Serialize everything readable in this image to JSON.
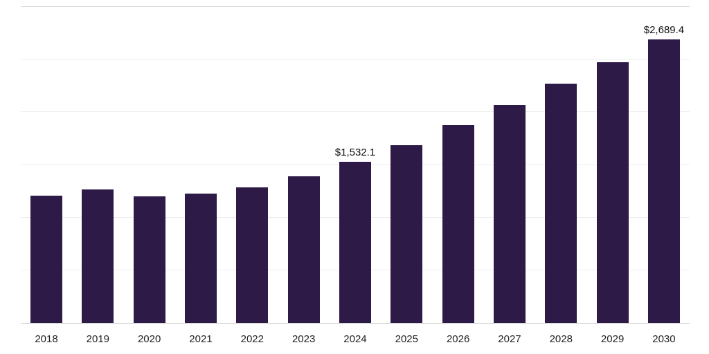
{
  "chart_data": {
    "type": "bar",
    "title": "",
    "xlabel": "",
    "ylabel": "",
    "categories": [
      "2018",
      "2019",
      "2020",
      "2021",
      "2022",
      "2023",
      "2024",
      "2025",
      "2026",
      "2027",
      "2028",
      "2029",
      "2030"
    ],
    "values": [
      1210,
      1270,
      1200,
      1225,
      1290,
      1390,
      1532.1,
      1690,
      1875,
      2070,
      2270,
      2475,
      2689.4
    ],
    "value_labels": {
      "2024": "$1,532.1",
      "2030": "$2,689.4"
    },
    "ylim": [
      0,
      3000
    ],
    "gridline_step": 500,
    "grid": true,
    "legend": false,
    "bar_color": "#2e1a47",
    "axis_line_color": "#c9c9c9",
    "gridline_color": "#ededed"
  }
}
